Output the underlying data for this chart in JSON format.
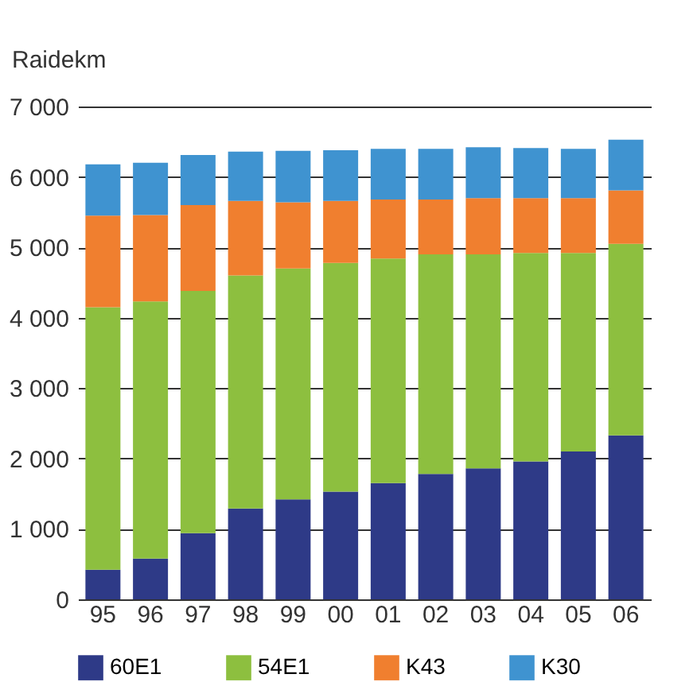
{
  "chart_data": {
    "type": "bar",
    "stacked": true,
    "ylabel": "Raidekm",
    "categories": [
      "95",
      "96",
      "97",
      "98",
      "99",
      "00",
      "01",
      "02",
      "03",
      "04",
      "05",
      "06"
    ],
    "series": [
      {
        "name": "60E1",
        "color": "#2e3a87",
        "values": [
          420,
          580,
          940,
          1290,
          1420,
          1530,
          1650,
          1780,
          1860,
          1960,
          2100,
          2330
        ]
      },
      {
        "name": "54E1",
        "color": "#8dbf3f",
        "values": [
          3730,
          3650,
          3440,
          3310,
          3280,
          3250,
          3190,
          3120,
          3040,
          2960,
          2820,
          2720
        ]
      },
      {
        "name": "K43",
        "color": "#f07f2f",
        "values": [
          1300,
          1230,
          1220,
          1060,
          940,
          880,
          840,
          780,
          800,
          780,
          780,
          760
        ]
      },
      {
        "name": "K30",
        "color": "#3f93d0",
        "values": [
          730,
          740,
          710,
          700,
          730,
          720,
          720,
          720,
          720,
          710,
          700,
          720
        ]
      }
    ],
    "ylim": [
      0,
      7000
    ],
    "yticks": [
      0,
      {
        "value": 1000,
        "label": "1 000"
      },
      {
        "value": 2000,
        "label": "2 000"
      },
      {
        "value": 3000,
        "label": "3 000"
      },
      {
        "value": 4000,
        "label": "4 000"
      },
      {
        "value": 5000,
        "label": "5 000"
      },
      {
        "value": 6000,
        "label": "6 000"
      },
      {
        "value": 7000,
        "label": "7 000"
      }
    ],
    "grid": "y",
    "legend": "bottom"
  }
}
